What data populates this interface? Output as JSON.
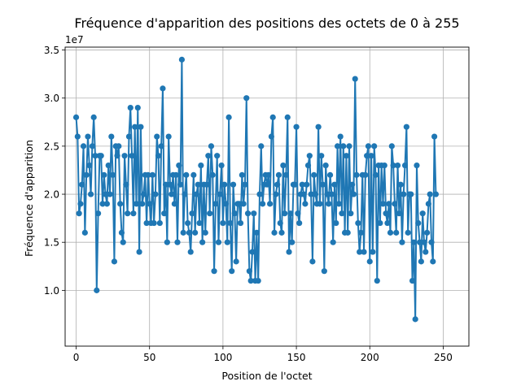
{
  "chart_data": {
    "type": "line",
    "title": "Fréquence d'apparition des positions des octets de 0 à 255",
    "xlabel": "Position de l'octet",
    "ylabel": "Fréquence d'apparition",
    "y_offset_label": "1e7",
    "xlim": [
      -7.5,
      267.5
    ],
    "ylim": [
      0.42,
      3.53
    ],
    "xticks": [
      0,
      50,
      100,
      150,
      200,
      250
    ],
    "yticks": [
      1.0,
      1.5,
      2.0,
      2.5,
      3.0,
      3.5
    ],
    "ytick_labels": [
      "1.0",
      "1.5",
      "2.0",
      "2.5",
      "3.0",
      "3.5"
    ],
    "grid": true,
    "series_color": "#1f77b4",
    "marker": "circle",
    "x": "0..255",
    "values": [
      2.8,
      2.6,
      1.8,
      1.9,
      2.1,
      2.5,
      1.6,
      2.2,
      2.6,
      2.3,
      2.0,
      2.5,
      2.8,
      2.4,
      1.0,
      1.8,
      2.4,
      2.4,
      1.9,
      2.2,
      2.0,
      1.9,
      2.3,
      2.0,
      2.6,
      2.2,
      1.3,
      2.5,
      2.4,
      2.5,
      1.9,
      1.6,
      1.5,
      2.4,
      2.1,
      1.8,
      2.6,
      2.9,
      2.4,
      1.8,
      2.7,
      1.9,
      2.9,
      1.4,
      2.7,
      1.9,
      2.0,
      2.2,
      1.7,
      2.2,
      1.9,
      1.7,
      2.2,
      1.7,
      2.0,
      2.6,
      2.4,
      1.7,
      2.5,
      3.1,
      1.8,
      2.1,
      1.5,
      2.6,
      2.1,
      2.0,
      2.2,
      1.9,
      2.2,
      1.5,
      2.3,
      2.1,
      3.4,
      1.6,
      2.0,
      2.2,
      1.7,
      1.6,
      1.4,
      1.8,
      2.2,
      1.6,
      2.0,
      2.1,
      1.7,
      2.3,
      1.5,
      2.1,
      1.6,
      2.1,
      2.4,
      1.8,
      2.5,
      2.2,
      1.2,
      1.9,
      2.4,
      1.5,
      2.0,
      2.3,
      1.7,
      2.1,
      1.9,
      1.5,
      2.8,
      1.7,
      1.2,
      2.1,
      1.8,
      1.3,
      1.9,
      1.9,
      1.7,
      2.2,
      1.9,
      2.1,
      3.0,
      1.8,
      1.2,
      1.1,
      1.4,
      1.8,
      1.1,
      1.6,
      1.1,
      2.0,
      2.5,
      1.9,
      2.1,
      2.2,
      2.1,
      2.2,
      1.9,
      2.6,
      2.8,
      1.6,
      2.0,
      2.1,
      2.2,
      1.7,
      1.6,
      2.3,
      1.8,
      2.2,
      2.8,
      1.4,
      1.8,
      1.5,
      2.1,
      2.1,
      2.7,
      1.8,
      1.7,
      2.0,
      2.1,
      2.0,
      1.9,
      2.1,
      2.3,
      2.4,
      2.0,
      1.3,
      2.2,
      2.0,
      1.9,
      2.7,
      1.9,
      2.4,
      2.1,
      1.2,
      2.3,
      2.0,
      1.9,
      2.2,
      2.0,
      1.5,
      2.1,
      1.7,
      2.5,
      1.9,
      2.6,
      1.8,
      2.5,
      1.6,
      2.4,
      1.6,
      2.5,
      1.8,
      2.1,
      2.0,
      3.2,
      2.2,
      1.7,
      1.4,
      1.6,
      2.2,
      1.4,
      2.2,
      2.4,
      2.5,
      1.3,
      2.4,
      1.4,
      2.5,
      2.2,
      1.1,
      2.3,
      1.7,
      2.3,
      1.9,
      2.3,
      1.8,
      1.7,
      1.9,
      1.6,
      2.5,
      2.3,
      1.9,
      1.6,
      2.3,
      1.8,
      2.1,
      1.5,
      2.0,
      2.3,
      2.7,
      1.6,
      2.0,
      2.0,
      1.1,
      1.5,
      0.7,
      2.3,
      1.7,
      1.5,
      1.3,
      1.8,
      1.5,
      1.4,
      1.6,
      1.9,
      2.0,
      1.5,
      1.3,
      2.6,
      2.0
    ]
  }
}
